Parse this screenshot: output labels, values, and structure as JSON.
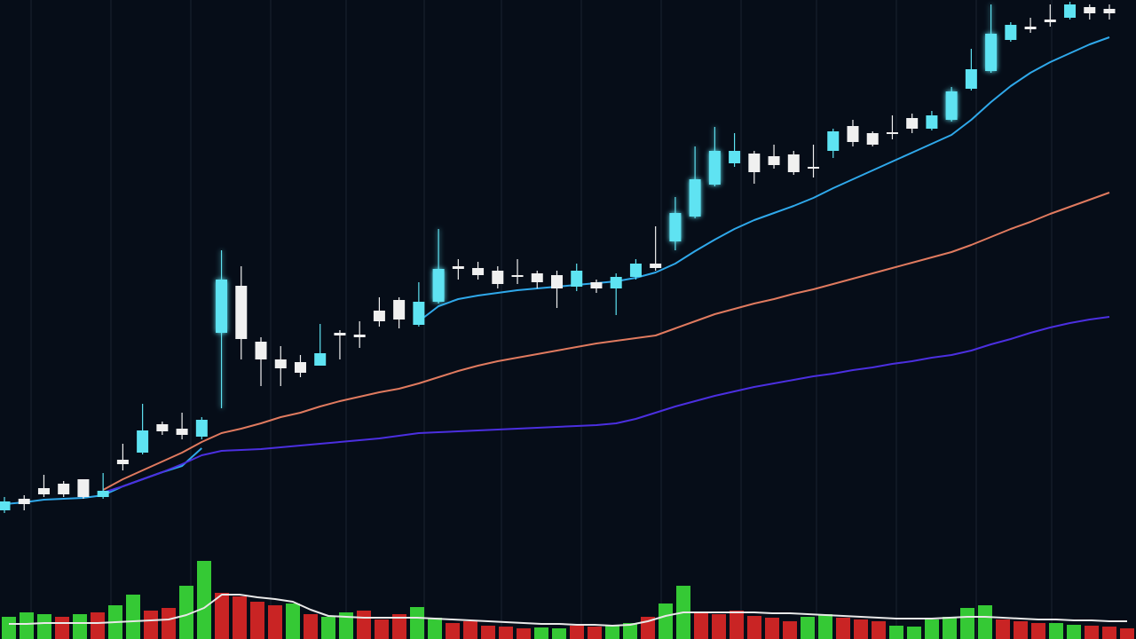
{
  "chart_data": [
    {
      "type": "candlestick",
      "up_color": "#5ee3f2",
      "down_color": "#f0f0f0",
      "ylim": [
        0,
        720
      ],
      "open": [
        145,
        158,
        170,
        175,
        180,
        160,
        202,
        210,
        242,
        237,
        228,
        345,
        398,
        335,
        315,
        312,
        308,
        345,
        343,
        370,
        382,
        354,
        380,
        420,
        418,
        415,
        410,
        412,
        410,
        397,
        402,
        395,
        408,
        423,
        448,
        476,
        512,
        536,
        547,
        544,
        546,
        532,
        550,
        578,
        570,
        571,
        587,
        575,
        585,
        620,
        640,
        675,
        690,
        698,
        700,
        712,
        710
      ],
      "high": [
        160,
        162,
        185,
        178,
        180,
        187,
        220,
        265,
        245,
        255,
        250,
        438,
        420,
        340,
        330,
        320,
        355,
        348,
        358,
        385,
        385,
        402,
        462,
        428,
        425,
        420,
        428,
        415,
        415,
        423,
        405,
        412,
        428,
        465,
        498,
        555,
        577,
        570,
        550,
        557,
        550,
        557,
        575,
        585,
        572,
        590,
        592,
        595,
        622,
        665,
        715,
        695,
        700,
        715,
        718,
        715,
        715
      ],
      "low": [
        142,
        145,
        160,
        160,
        158,
        158,
        190,
        208,
        230,
        225,
        225,
        260,
        315,
        285,
        285,
        295,
        308,
        315,
        328,
        352,
        350,
        352,
        378,
        405,
        405,
        395,
        400,
        395,
        373,
        392,
        390,
        365,
        405,
        415,
        438,
        474,
        510,
        532,
        513,
        530,
        523,
        520,
        542,
        555,
        555,
        563,
        570,
        573,
        583,
        618,
        638,
        673,
        683,
        690,
        698,
        698,
        698
      ],
      "close": [
        155,
        152,
        163,
        163,
        160,
        167,
        197,
        235,
        234,
        230,
        247,
        405,
        338,
        315,
        305,
        300,
        322,
        342,
        340,
        358,
        360,
        380,
        417,
        417,
        410,
        400,
        408,
        402,
        395,
        415,
        395,
        408,
        423,
        418,
        480,
        518,
        550,
        550,
        526,
        534,
        526,
        530,
        572,
        560,
        557,
        569,
        575,
        590,
        617,
        642,
        682,
        692,
        687,
        695,
        715,
        705,
        705
      ],
      "series": [
        {
          "color": "#2fa8ea",
          "values": [
            152,
            154,
            157,
            158,
            159,
            162,
            172,
            180,
            188,
            195,
            215,
            null,
            null,
            null,
            null,
            null,
            null,
            null,
            null,
            null,
            null,
            358,
            375,
            383,
            387,
            390,
            393,
            395,
            397,
            399,
            401,
            403,
            407,
            413,
            423,
            437,
            450,
            462,
            472,
            480,
            488,
            497,
            508,
            518,
            528,
            538,
            548,
            558,
            568,
            585,
            605,
            623,
            638,
            650,
            660,
            670,
            678
          ]
        },
        {
          "color": "#e07a5f",
          "values": [
            null,
            null,
            null,
            null,
            null,
            168,
            180,
            190,
            200,
            210,
            222,
            232,
            237,
            243,
            250,
            255,
            262,
            268,
            273,
            278,
            282,
            288,
            295,
            302,
            308,
            313,
            317,
            321,
            325,
            329,
            333,
            336,
            339,
            342,
            350,
            358,
            366,
            372,
            378,
            383,
            389,
            394,
            400,
            406,
            412,
            418,
            424,
            430,
            436,
            444,
            453,
            462,
            470,
            479,
            487,
            495,
            503
          ]
        },
        {
          "color": "#4b2fe0",
          "values": [
            null,
            null,
            null,
            null,
            null,
            165,
            172,
            180,
            188,
            197,
            207,
            212,
            213,
            214,
            216,
            218,
            220,
            222,
            224,
            226,
            229,
            232,
            233,
            234,
            235,
            236,
            237,
            238,
            239,
            240,
            241,
            243,
            248,
            255,
            262,
            268,
            274,
            279,
            284,
            288,
            292,
            296,
            299,
            303,
            306,
            310,
            313,
            317,
            320,
            325,
            332,
            338,
            345,
            351,
            356,
            360,
            363
          ]
        }
      ]
    },
    {
      "type": "bar",
      "ylim": [
        0,
        100
      ],
      "values": [
        25,
        30,
        28,
        25,
        28,
        30,
        38,
        50,
        32,
        35,
        60,
        88,
        52,
        48,
        42,
        38,
        40,
        28,
        25,
        30,
        32,
        22,
        28,
        36,
        24,
        18,
        20,
        15,
        14,
        12,
        13,
        12,
        15,
        14,
        16,
        18,
        25,
        40,
        60,
        30,
        28,
        32,
        26,
        24,
        20,
        25,
        28,
        24,
        22,
        20,
        15,
        14,
        22,
        25,
        35,
        38,
        22,
        20,
        18,
        18,
        16,
        15,
        14,
        12
      ],
      "colors": [
        "#35c935",
        "#35c935",
        "#35c935",
        "#c92424",
        "#35c935",
        "#c92424",
        "#35c935",
        "#35c935",
        "#c92424",
        "#c92424",
        "#35c935",
        "#35c935",
        "#c92424",
        "#c92424",
        "#c92424",
        "#c92424",
        "#35c935",
        "#c92424",
        "#35c935",
        "#35c935",
        "#c92424",
        "#c92424",
        "#c92424",
        "#35c935",
        "#35c935",
        "#c92424",
        "#c92424",
        "#c92424",
        "#c92424",
        "#c92424",
        "#35c935",
        "#35c935",
        "#c92424",
        "#c92424",
        "#35c935",
        "#35c935",
        "#c92424",
        "#35c935",
        "#35c935",
        "#c92424",
        "#c92424",
        "#c92424",
        "#c92424",
        "#c92424",
        "#c92424",
        "#35c935",
        "#35c935",
        "#c92424",
        "#c92424",
        "#c92424",
        "#35c935",
        "#35c935",
        "#35c935",
        "#35c935",
        "#35c935",
        "#35c935",
        "#c92424",
        "#c92424",
        "#c92424",
        "#35c935",
        "#35c935",
        "#c92424",
        "#c92424",
        "#c92424"
      ],
      "series": [
        {
          "color": "#e8e8e8",
          "values": [
            17,
            17,
            18,
            18,
            18,
            18,
            19,
            20,
            21,
            22,
            27,
            35,
            50,
            50,
            47,
            45,
            42,
            33,
            26,
            25,
            24,
            24,
            24,
            24,
            23,
            22,
            21,
            20,
            19,
            18,
            17,
            17,
            16,
            16,
            15,
            16,
            20,
            26,
            30,
            30,
            30,
            30,
            30,
            29,
            29,
            28,
            27,
            26,
            25,
            24,
            23,
            23,
            23,
            24,
            25,
            25,
            24,
            23,
            22,
            22,
            21,
            21,
            20,
            20
          ]
        }
      ]
    }
  ]
}
